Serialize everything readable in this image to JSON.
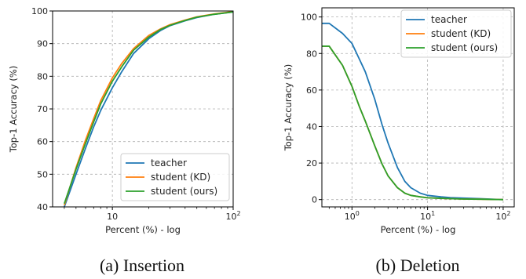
{
  "chart_data": [
    {
      "type": "line",
      "caption": "(a) Insertion",
      "xlabel": "Percent (%) - log",
      "ylabel": "Top-1 Accuracy (%)",
      "xscale": "log",
      "xlim": [
        3.2,
        100
      ],
      "ylim": [
        40,
        100
      ],
      "y_ticks": [
        40,
        50,
        60,
        70,
        80,
        90,
        100
      ],
      "x_tick_labels": [
        {
          "base": "10",
          "exp": ""
        },
        {
          "base": "10",
          "exp": "2"
        }
      ],
      "x_tick_values": [
        10,
        100
      ],
      "grid": true,
      "legend_position": "lower-right",
      "series": [
        {
          "name": "teacher",
          "color": "#1f77b4",
          "x": [
            4,
            5,
            6,
            7,
            8,
            10,
            12,
            15,
            20,
            25,
            30,
            40,
            50,
            70,
            100
          ],
          "y": [
            40,
            50,
            58,
            64.5,
            69.5,
            76.5,
            81.5,
            87,
            91.5,
            94,
            95.5,
            97,
            98,
            99,
            99.7
          ]
        },
        {
          "name": "student (KD)",
          "color": "#ff7f0e",
          "x": [
            4,
            5,
            6,
            7,
            8,
            10,
            12,
            15,
            20,
            25,
            30,
            40,
            50,
            70,
            100
          ],
          "y": [
            40.5,
            52,
            60.5,
            67,
            72.5,
            79.5,
            84,
            88.5,
            92.5,
            94.5,
            95.8,
            97.2,
            98.2,
            99.1,
            99.8
          ]
        },
        {
          "name": "student (ours)",
          "color": "#2ca02c",
          "x": [
            4,
            5,
            6,
            7,
            8,
            10,
            12,
            15,
            20,
            25,
            30,
            40,
            50,
            70,
            100
          ],
          "y": [
            41,
            51.5,
            59.5,
            66,
            71.5,
            78.5,
            83,
            88,
            92,
            94.3,
            95.6,
            97.1,
            98.1,
            99,
            99.7
          ]
        }
      ]
    },
    {
      "type": "line",
      "caption": "(b) Deletion",
      "xlabel": "Percent (%) - log",
      "ylabel": "Top-1 Accuracy (%)",
      "xscale": "log",
      "xlim": [
        0.4,
        140
      ],
      "ylim": [
        -4,
        105
      ],
      "y_ticks": [
        0,
        20,
        40,
        60,
        80,
        100
      ],
      "x_tick_labels": [
        {
          "base": "10",
          "exp": "0"
        },
        {
          "base": "10",
          "exp": "1"
        },
        {
          "base": "10",
          "exp": "2"
        }
      ],
      "x_tick_values": [
        1,
        10,
        100
      ],
      "grid": true,
      "legend_position": "upper-right",
      "series": [
        {
          "name": "teacher",
          "color": "#1f77b4",
          "x": [
            0.4,
            0.5,
            0.75,
            1,
            1.25,
            1.5,
            2,
            2.5,
            3,
            4,
            5,
            6,
            8,
            10,
            15,
            20,
            30,
            50,
            70,
            100
          ],
          "y": [
            96.5,
            96.5,
            91,
            85.5,
            77,
            70,
            55,
            41,
            31,
            17.5,
            10,
            6.5,
            3.5,
            2.3,
            1.5,
            1.1,
            0.8,
            0.5,
            0.2,
            0
          ]
        },
        {
          "name": "student (KD)",
          "color": "#ff7f0e",
          "x": [
            0.4,
            0.5,
            0.75,
            1,
            1.25,
            1.5,
            2,
            2.5,
            3,
            4,
            5,
            6,
            8,
            10,
            15,
            20,
            30,
            50,
            70,
            100
          ],
          "y": [
            84,
            84,
            73.5,
            62,
            51,
            43,
            29.5,
            19.5,
            13,
            6.5,
            3.5,
            2.3,
            1.5,
            1,
            0.7,
            0.5,
            0.3,
            0.2,
            0.1,
            0
          ]
        },
        {
          "name": "student (ours)",
          "color": "#2ca02c",
          "x": [
            0.4,
            0.5,
            0.75,
            1,
            1.25,
            1.5,
            2,
            2.5,
            3,
            4,
            5,
            6,
            8,
            10,
            15,
            20,
            30,
            50,
            70,
            100
          ],
          "y": [
            84,
            84,
            73.5,
            62,
            51,
            43,
            29.5,
            19.5,
            13,
            6.5,
            3.5,
            2.3,
            1.5,
            1,
            0.7,
            0.5,
            0.3,
            0.2,
            0.1,
            0
          ]
        }
      ]
    }
  ]
}
